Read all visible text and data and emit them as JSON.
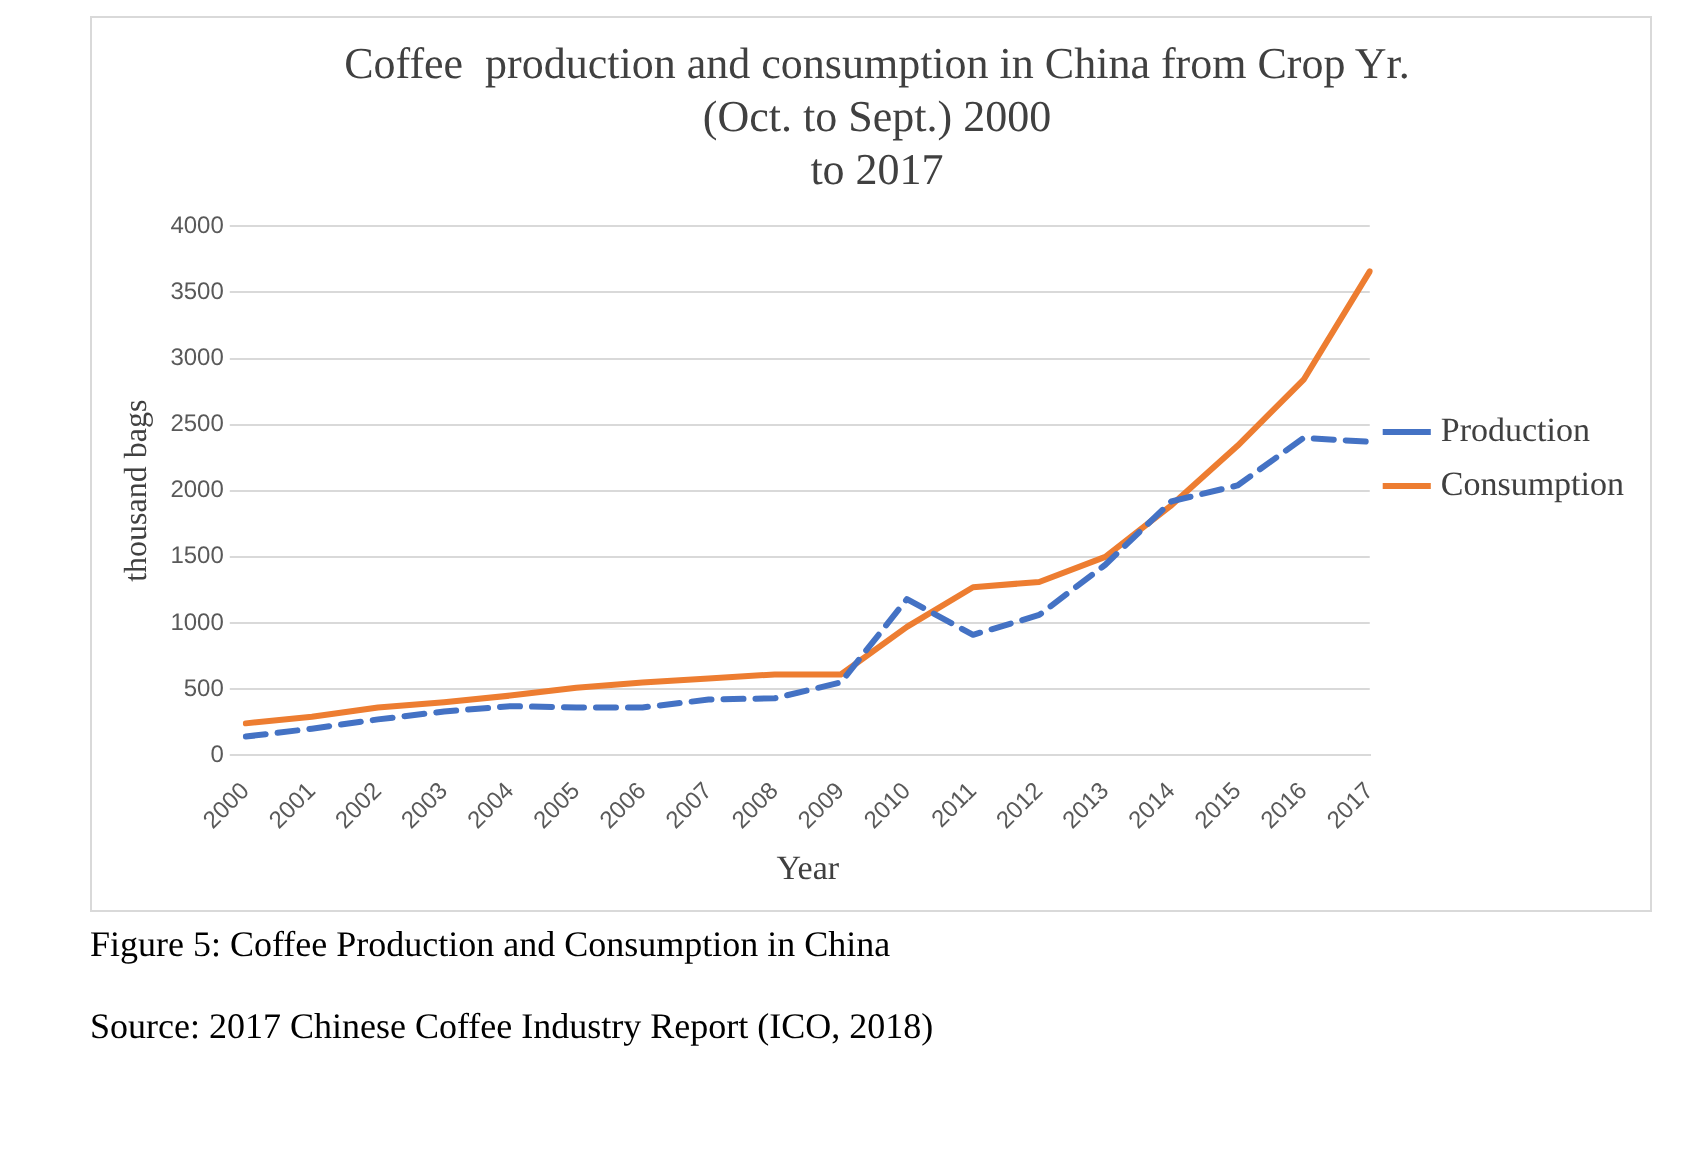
{
  "chart_data": {
    "type": "line",
    "title": "Coffee  production and consumption in China from Crop Yr.\n(Oct. to Sept.) 2000\nto 2017",
    "xlabel": "Year",
    "ylabel": "thousand bags",
    "categories": [
      "2000",
      "2001",
      "2002",
      "2003",
      "2004",
      "2005",
      "2006",
      "2007",
      "2008",
      "2009",
      "2010",
      "2011",
      "2012",
      "2013",
      "2014",
      "2015",
      "2016",
      "2017"
    ],
    "series": [
      {
        "name": "Production",
        "color": "#4472c4",
        "line_style": "dashed",
        "values": [
          140,
          200,
          270,
          330,
          370,
          360,
          360,
          420,
          430,
          550,
          1180,
          910,
          1060,
          1440,
          1920,
          2040,
          2400,
          2370
        ]
      },
      {
        "name": "Consumption",
        "color": "#ed7d31",
        "line_style": "solid",
        "values": [
          240,
          290,
          360,
          400,
          450,
          510,
          550,
          580,
          610,
          610,
          970,
          1270,
          1310,
          1500,
          1890,
          2340,
          2840,
          3660
        ]
      }
    ],
    "ylim": [
      0,
      4000
    ],
    "yticks": [
      0,
      500,
      1000,
      1500,
      2000,
      2500,
      3000,
      3500,
      4000
    ],
    "grid": "y",
    "legend": "right",
    "marker": "none",
    "annotations": [
      "Figure 5: Coffee Production and Consumption in China",
      "Source: 2017 Chinese Coffee Industry Report (ICO, 2018)"
    ]
  }
}
